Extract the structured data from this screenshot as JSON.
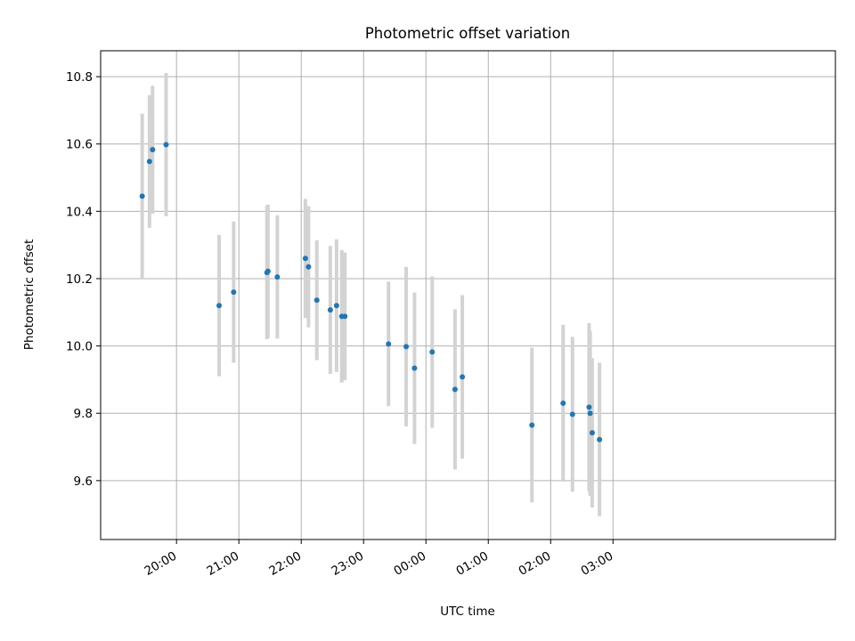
{
  "chart_data": {
    "type": "scatter",
    "title": "Photometric offset variation",
    "xlabel": "UTC time",
    "ylabel": "Photometric offset",
    "x_unit": "minutes since 19:00 UTC",
    "xlim": [
      -13,
      694
    ],
    "ylim": [
      9.425,
      10.877
    ],
    "grid": true,
    "x_ticks": [
      {
        "value": 60,
        "label": "20:00"
      },
      {
        "value": 120,
        "label": "21:00"
      },
      {
        "value": 180,
        "label": "22:00"
      },
      {
        "value": 240,
        "label": "23:00"
      },
      {
        "value": 300,
        "label": "00:00"
      },
      {
        "value": 360,
        "label": "01:00"
      },
      {
        "value": 420,
        "label": "02:00"
      },
      {
        "value": 480,
        "label": "03:00"
      }
    ],
    "y_ticks": [
      {
        "value": 9.6,
        "label": "9.6"
      },
      {
        "value": 9.8,
        "label": "9.8"
      },
      {
        "value": 10.0,
        "label": "10.0"
      },
      {
        "value": 10.2,
        "label": "10.2"
      },
      {
        "value": 10.4,
        "label": "10.4"
      },
      {
        "value": 10.6,
        "label": "10.6"
      },
      {
        "value": 10.8,
        "label": "10.8"
      }
    ],
    "series": [
      {
        "name": "Photometric offset",
        "marker_color": "#1f77b4",
        "errorbar_color": "#d3d3d3",
        "points": [
          {
            "x": 27,
            "y": 10.445,
            "err": 0.245
          },
          {
            "x": 34,
            "y": 10.548,
            "err": 0.197
          },
          {
            "x": 37,
            "y": 10.583,
            "err": 0.19
          },
          {
            "x": 50,
            "y": 10.598,
            "err": 0.213
          },
          {
            "x": 101,
            "y": 10.12,
            "err": 0.21
          },
          {
            "x": 115,
            "y": 10.16,
            "err": 0.21
          },
          {
            "x": 147,
            "y": 10.218,
            "err": 0.198
          },
          {
            "x": 148,
            "y": 10.222,
            "err": 0.198
          },
          {
            "x": 157,
            "y": 10.205,
            "err": 0.183
          },
          {
            "x": 184,
            "y": 10.26,
            "err": 0.177
          },
          {
            "x": 187,
            "y": 10.235,
            "err": 0.18
          },
          {
            "x": 195,
            "y": 10.136,
            "err": 0.178
          },
          {
            "x": 208,
            "y": 10.107,
            "err": 0.19
          },
          {
            "x": 214,
            "y": 10.12,
            "err": 0.197
          },
          {
            "x": 219,
            "y": 10.088,
            "err": 0.197
          },
          {
            "x": 222,
            "y": 10.088,
            "err": 0.19
          },
          {
            "x": 264,
            "y": 10.006,
            "err": 0.185
          },
          {
            "x": 281,
            "y": 9.998,
            "err": 0.237
          },
          {
            "x": 289,
            "y": 9.934,
            "err": 0.225
          },
          {
            "x": 306,
            "y": 9.982,
            "err": 0.225
          },
          {
            "x": 328,
            "y": 9.871,
            "err": 0.238
          },
          {
            "x": 335,
            "y": 9.908,
            "err": 0.243
          },
          {
            "x": 402,
            "y": 9.765,
            "err": 0.23
          },
          {
            "x": 432,
            "y": 9.83,
            "err": 0.233
          },
          {
            "x": 441,
            "y": 9.797,
            "err": 0.23
          },
          {
            "x": 457,
            "y": 9.818,
            "err": 0.25
          },
          {
            "x": 458,
            "y": 9.8,
            "err": 0.245
          },
          {
            "x": 460,
            "y": 9.742,
            "err": 0.222
          },
          {
            "x": 467,
            "y": 9.722,
            "err": 0.228
          }
        ]
      }
    ]
  }
}
